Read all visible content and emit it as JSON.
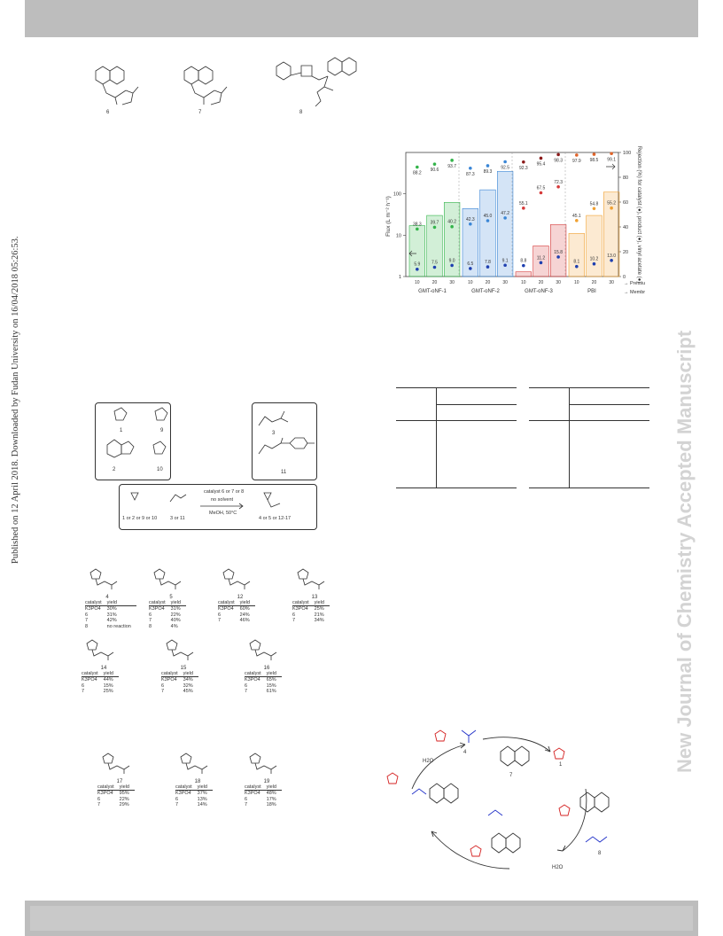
{
  "sidebar": {
    "published": "Published on 12 April 2018. Downloaded by Fudan University on 16/04/2018 05:26:53."
  },
  "watermark": "New Journal of Chemistry Accepted Manuscript",
  "structures_top": [
    "6",
    "7",
    "8"
  ],
  "substrates": {
    "azoles": [
      "1",
      "9",
      "2",
      "10"
    ],
    "esters": [
      "3",
      "11"
    ]
  },
  "reaction_scheme": {
    "reactants": "1 or 2 or 9 or 10",
    "esters": "3 or 11",
    "conditions_1": "catalyst 6 or 7 or 8",
    "conditions_2": "no solvent",
    "conditions_3": "MeOH, 50°C",
    "products": "4 or 5 or 12-17"
  },
  "product_tables": [
    {
      "id": "4",
      "headers": [
        "catalyst",
        "yield"
      ],
      "rows": [
        [
          "K3PO4",
          "30%"
        ],
        [
          "6",
          "31%"
        ],
        [
          "7",
          "42%"
        ],
        [
          "8",
          "no reaction"
        ]
      ]
    },
    {
      "id": "5",
      "headers": [
        "catalyst",
        "yield"
      ],
      "rows": [
        [
          "K3PO4",
          "31%"
        ],
        [
          "6",
          "22%"
        ],
        [
          "7",
          "40%"
        ],
        [
          "8",
          "4%"
        ]
      ]
    },
    {
      "id": "12",
      "headers": [
        "catalyst",
        "yield"
      ],
      "rows": [
        [
          "K3PO4",
          "60%"
        ],
        [
          "6",
          "24%"
        ],
        [
          "7",
          "46%"
        ]
      ]
    },
    {
      "id": "13",
      "headers": [
        "catalyst",
        "yield"
      ],
      "rows": [
        [
          "K3PO4",
          "25%"
        ],
        [
          "6",
          "21%"
        ],
        [
          "7",
          "34%"
        ]
      ]
    },
    {
      "id": "14",
      "headers": [
        "catalyst",
        "yield"
      ],
      "rows": [
        [
          "K3PO4",
          "44%"
        ],
        [
          "6",
          "15%"
        ],
        [
          "7",
          "25%"
        ]
      ]
    },
    {
      "id": "15",
      "headers": [
        "catalyst",
        "yield"
      ],
      "rows": [
        [
          "K3PO4",
          "34%"
        ],
        [
          "6",
          "32%"
        ],
        [
          "7",
          "45%"
        ]
      ]
    },
    {
      "id": "16",
      "headers": [
        "catalyst",
        "yield"
      ],
      "rows": [
        [
          "K3PO4",
          "65%"
        ],
        [
          "6",
          "15%"
        ],
        [
          "7",
          "61%"
        ]
      ]
    },
    {
      "id": "17",
      "headers": [
        "catalyst",
        "yield"
      ],
      "rows": [
        [
          "K3PO4",
          "95%"
        ],
        [
          "6",
          "22%"
        ],
        [
          "7",
          "29%"
        ]
      ]
    },
    {
      "id": "18",
      "headers": [
        "catalyst",
        "yield"
      ],
      "rows": [
        [
          "K3PO4",
          "37%"
        ],
        [
          "6",
          "13%"
        ],
        [
          "7",
          "14%"
        ]
      ]
    },
    {
      "id": "19",
      "headers": [
        "catalyst",
        "yield"
      ],
      "rows": [
        [
          "K3PO4",
          "48%"
        ],
        [
          "6",
          "17%"
        ],
        [
          "7",
          "18%"
        ]
      ]
    }
  ],
  "cycle_labels": [
    "4",
    "1",
    "7",
    "8",
    "H2O",
    "H2O"
  ],
  "chart_data": {
    "type": "bar",
    "groups": [
      "GMT-oNF-1",
      "GMT-oNF-2",
      "GMT-oNF-3",
      "PBI"
    ],
    "pressures": [
      "10",
      "20",
      "30"
    ],
    "xlabel_pressure": "Pressure (bar)",
    "xlabel_membrane": "Membrane (-)",
    "ylabel_left": "Flux (L m⁻² h⁻¹)",
    "ylabel_right": "Rejection (%) for catalyst (●), product (●), vinyl acetate (●)",
    "yscale_left": "log",
    "ylim_left": [
      1,
      1000
    ],
    "ylim_right": [
      0,
      100
    ],
    "left_ticks": [
      "1",
      "10",
      "100"
    ],
    "right_ticks": [
      "0",
      "20",
      "40",
      "60",
      "80",
      "100"
    ],
    "colors": {
      "GMT-oNF-1": "#33b44a",
      "GMT-oNF-2": "#3a86d6",
      "GMT-oNF-3": "#d63a3a",
      "PBI": "#f0a030",
      "catalyst_marker_gmt3": "#8b1a1a",
      "catalyst_marker_pbi": "#e0642a",
      "vinyl_marker": "#1e3fb0"
    },
    "flux": [
      [
        17,
        30,
        62
      ],
      [
        44,
        125,
        350
      ],
      [
        1.3,
        5.5,
        18
      ],
      [
        11,
        30,
        110
      ]
    ],
    "rejection_catalyst": [
      [
        88.2,
        90.6,
        93.7
      ],
      [
        87.3,
        89.3,
        92.5
      ],
      [
        92.3,
        95.4,
        98.3
      ],
      [
        97.9,
        98.5,
        99.1
      ]
    ],
    "rejection_product": [
      [
        38.3,
        39.7,
        40.2
      ],
      [
        42.3,
        45.0,
        47.2
      ],
      [
        55.1,
        67.5,
        72.3
      ],
      [
        45.1,
        54.8,
        55.2
      ]
    ],
    "rejection_vinyl": [
      [
        5.9,
        7.5,
        9.0
      ],
      [
        6.5,
        7.8,
        9.1
      ],
      [
        8.8,
        11.2,
        15.8
      ],
      [
        8.1,
        10.2,
        13.0
      ]
    ],
    "catalyst_labels": [
      [
        "88.2",
        "90.6",
        "93.7"
      ],
      [
        "87.3",
        "89.3",
        "92.5"
      ],
      [
        "92.3",
        "95.4",
        "98.3"
      ],
      [
        "97.9",
        "98.5",
        "99.1"
      ]
    ],
    "product_labels": [
      [
        "38.3",
        "39.7",
        "40.2"
      ],
      [
        "42.3",
        "45.0",
        "47.2"
      ],
      [
        "55.1",
        "67.5",
        "72.3"
      ],
      [
        "45.1",
        "54.8",
        "55.2"
      ]
    ],
    "vinyl_labels": [
      [
        "5.9",
        "7.5",
        "9.0"
      ],
      [
        "6.5",
        "7.8",
        "9.1"
      ],
      [
        "8.8",
        "11.2",
        "15.8"
      ],
      [
        "8.1",
        "10.2",
        "13.0"
      ]
    ]
  }
}
